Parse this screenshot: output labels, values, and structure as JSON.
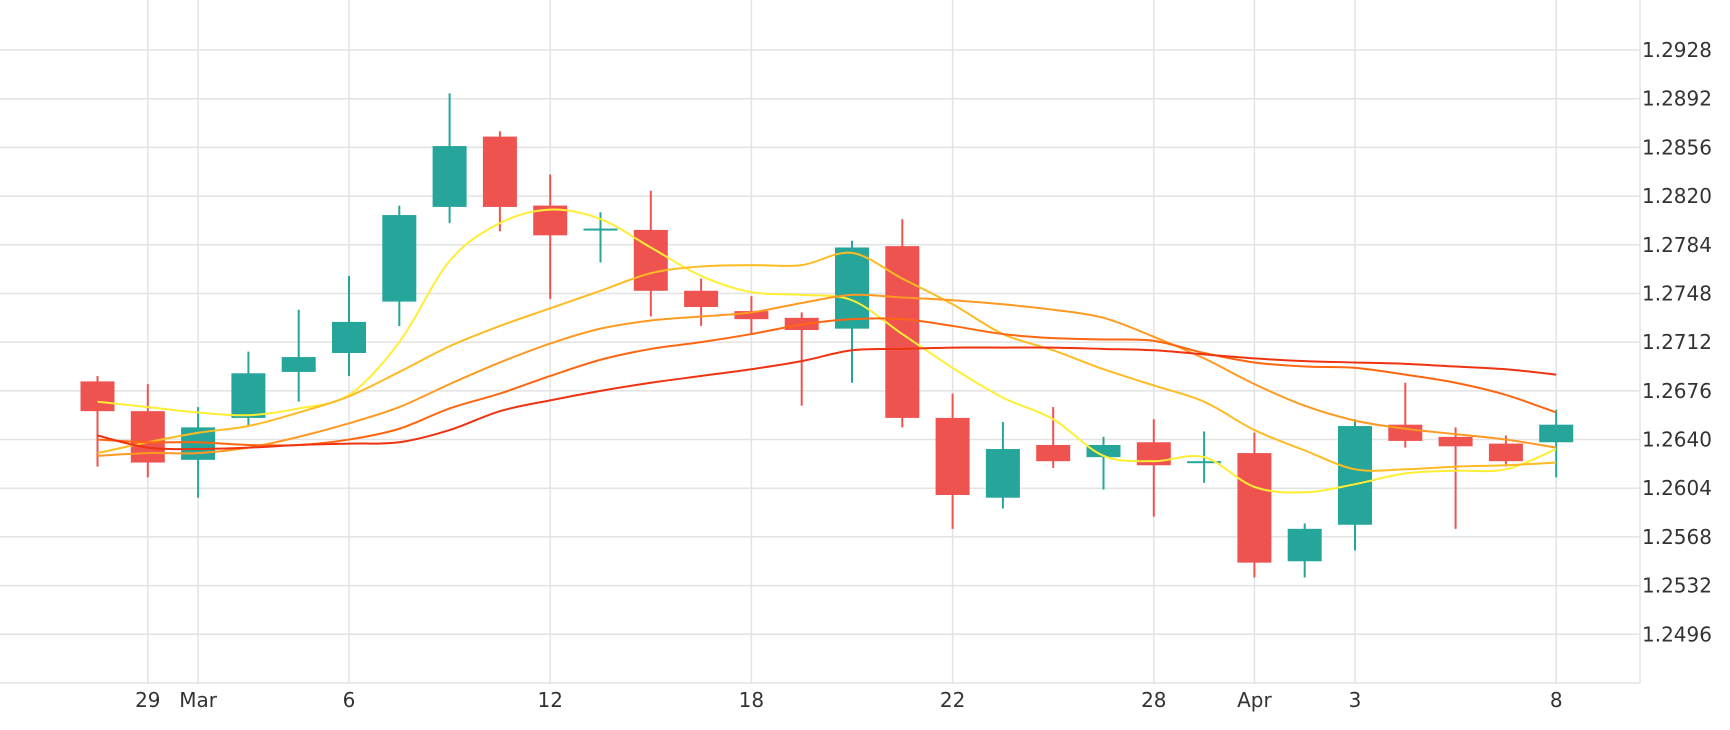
{
  "colors": {
    "background": "#ffffff",
    "grid": "#e3e3e3",
    "up": "#26a69a",
    "down": "#ef5350",
    "axis_text": "#333333"
  },
  "chart_data": {
    "type": "candlestick",
    "title": "",
    "xlabel": "",
    "ylabel": "",
    "grid": true,
    "y_axis_position": "right",
    "ylim": [
      1.246,
      1.2965
    ],
    "x_ticks": [
      {
        "slot": 1,
        "label": "29"
      },
      {
        "slot": 2,
        "label": "Mar"
      },
      {
        "slot": 5,
        "label": "6"
      },
      {
        "slot": 9,
        "label": "12"
      },
      {
        "slot": 13,
        "label": "18"
      },
      {
        "slot": 17,
        "label": "22"
      },
      {
        "slot": 21,
        "label": "28"
      },
      {
        "slot": 23,
        "label": "Apr"
      },
      {
        "slot": 25,
        "label": "3"
      },
      {
        "slot": 29,
        "label": "8"
      }
    ],
    "y_ticks": [
      "1.2928",
      "1.2892",
      "1.2856",
      "1.2820",
      "1.2784",
      "1.2748",
      "1.2712",
      "1.2676",
      "1.2640",
      "1.2604",
      "1.2568",
      "1.2532",
      "1.2496"
    ],
    "candles": [
      {
        "slot": 0,
        "open": 1.2683,
        "high": 1.2687,
        "low": 1.262,
        "close": 1.2661
      },
      {
        "slot": 1,
        "open": 1.2661,
        "high": 1.2681,
        "low": 1.2612,
        "close": 1.2623
      },
      {
        "slot": 2,
        "open": 1.2625,
        "high": 1.2664,
        "low": 1.2597,
        "close": 1.2649
      },
      {
        "slot": 3,
        "open": 1.2656,
        "high": 1.2705,
        "low": 1.265,
        "close": 1.2689
      },
      {
        "slot": 4,
        "open": 1.269,
        "high": 1.2736,
        "low": 1.2668,
        "close": 1.2701
      },
      {
        "slot": 5,
        "open": 1.2704,
        "high": 1.2761,
        "low": 1.2687,
        "close": 1.2727
      },
      {
        "slot": 6,
        "open": 1.2742,
        "high": 1.2813,
        "low": 1.2724,
        "close": 1.2806
      },
      {
        "slot": 7,
        "open": 1.2812,
        "high": 1.2896,
        "low": 1.28,
        "close": 1.2857
      },
      {
        "slot": 8,
        "open": 1.2864,
        "high": 1.2868,
        "low": 1.2794,
        "close": 1.2812
      },
      {
        "slot": 9,
        "open": 1.2813,
        "high": 1.2836,
        "low": 1.2744,
        "close": 1.2791
      },
      {
        "slot": 10,
        "open": 1.2795,
        "high": 1.2808,
        "low": 1.2771,
        "close": 1.2796
      },
      {
        "slot": 11,
        "open": 1.2795,
        "high": 1.2824,
        "low": 1.2731,
        "close": 1.275
      },
      {
        "slot": 12,
        "open": 1.275,
        "high": 1.2759,
        "low": 1.2724,
        "close": 1.2738
      },
      {
        "slot": 13,
        "open": 1.2735,
        "high": 1.2746,
        "low": 1.2718,
        "close": 1.2729
      },
      {
        "slot": 14,
        "open": 1.273,
        "high": 1.2734,
        "low": 1.2665,
        "close": 1.2721
      },
      {
        "slot": 15,
        "open": 1.2722,
        "high": 1.2787,
        "low": 1.2682,
        "close": 1.2782
      },
      {
        "slot": 16,
        "open": 1.2783,
        "high": 1.2803,
        "low": 1.2649,
        "close": 1.2656
      },
      {
        "slot": 17,
        "open": 1.2656,
        "high": 1.2674,
        "low": 1.2574,
        "close": 1.2599
      },
      {
        "slot": 18,
        "open": 1.2597,
        "high": 1.2653,
        "low": 1.2589,
        "close": 1.2633
      },
      {
        "slot": 19,
        "open": 1.2636,
        "high": 1.2664,
        "low": 1.2619,
        "close": 1.2624
      },
      {
        "slot": 20,
        "open": 1.2627,
        "high": 1.2642,
        "low": 1.2603,
        "close": 1.2636
      },
      {
        "slot": 21,
        "open": 1.2638,
        "high": 1.2655,
        "low": 1.2583,
        "close": 1.2621
      },
      {
        "slot": 22,
        "open": 1.2623,
        "high": 1.2646,
        "low": 1.2608,
        "close": 1.2624
      },
      {
        "slot": 23,
        "open": 1.263,
        "high": 1.2645,
        "low": 1.2538,
        "close": 1.2549
      },
      {
        "slot": 24,
        "open": 1.255,
        "high": 1.2578,
        "low": 1.2538,
        "close": 1.2574
      },
      {
        "slot": 25,
        "open": 1.2577,
        "high": 1.2655,
        "low": 1.2558,
        "close": 1.265
      },
      {
        "slot": 26,
        "open": 1.2651,
        "high": 1.2682,
        "low": 1.2634,
        "close": 1.2639
      },
      {
        "slot": 27,
        "open": 1.2642,
        "high": 1.2649,
        "low": 1.2574,
        "close": 1.2635
      },
      {
        "slot": 28,
        "open": 1.2637,
        "high": 1.2643,
        "low": 1.262,
        "close": 1.2624
      },
      {
        "slot": 29,
        "open": 1.2638,
        "high": 1.2662,
        "low": 1.2612,
        "close": 1.2651
      }
    ],
    "series": [
      {
        "color": "#ffee33",
        "values": [
          1.2668,
          1.2664,
          1.266,
          1.2658,
          1.2663,
          1.2673,
          1.2712,
          1.2772,
          1.28,
          1.281,
          1.2803,
          1.2782,
          1.2761,
          1.2749,
          1.2747,
          1.2743,
          1.2718,
          1.2693,
          1.2671,
          1.2655,
          1.2628,
          1.2624,
          1.2627,
          1.2605,
          1.2601,
          1.2607,
          1.2615,
          1.2617,
          1.2618,
          1.2633
        ]
      },
      {
        "color": "#ffbb22",
        "values": [
          1.263,
          1.2638,
          1.2645,
          1.265,
          1.266,
          1.2672,
          1.269,
          1.2709,
          1.2724,
          1.2737,
          1.275,
          1.2763,
          1.2768,
          1.2769,
          1.2769,
          1.2778,
          1.2759,
          1.274,
          1.2718,
          1.2706,
          1.2692,
          1.268,
          1.2668,
          1.2647,
          1.2632,
          1.2618,
          1.2618,
          1.262,
          1.2621,
          1.2623
        ]
      },
      {
        "color": "#ff9922",
        "values": [
          1.2628,
          1.263,
          1.263,
          1.2634,
          1.2642,
          1.2652,
          1.2664,
          1.2681,
          1.2697,
          1.2711,
          1.2722,
          1.2728,
          1.2731,
          1.2734,
          1.2741,
          1.2747,
          1.2745,
          1.2743,
          1.274,
          1.2736,
          1.273,
          1.2716,
          1.27,
          1.2681,
          1.2665,
          1.2654,
          1.2648,
          1.2644,
          1.264,
          1.2634
        ]
      },
      {
        "color": "#ff6611",
        "values": [
          1.264,
          1.2638,
          1.2638,
          1.2636,
          1.2636,
          1.264,
          1.2648,
          1.2663,
          1.2674,
          1.2687,
          1.2699,
          1.2707,
          1.2712,
          1.2718,
          1.2725,
          1.2729,
          1.2729,
          1.2724,
          1.2718,
          1.2715,
          1.2714,
          1.2713,
          1.2704,
          1.2697,
          1.2694,
          1.2693,
          1.2688,
          1.2682,
          1.2673,
          1.266
        ]
      },
      {
        "color": "#ee3311",
        "values": [
          1.2643,
          1.2634,
          1.2633,
          1.2634,
          1.2636,
          1.2637,
          1.2638,
          1.2647,
          1.2661,
          1.2669,
          1.2676,
          1.2682,
          1.2687,
          1.2692,
          1.2698,
          1.2706,
          1.2707,
          1.2708,
          1.2708,
          1.2708,
          1.2707,
          1.2706,
          1.2703,
          1.27,
          1.2698,
          1.2697,
          1.2696,
          1.2694,
          1.2692,
          1.2688
        ]
      }
    ]
  }
}
